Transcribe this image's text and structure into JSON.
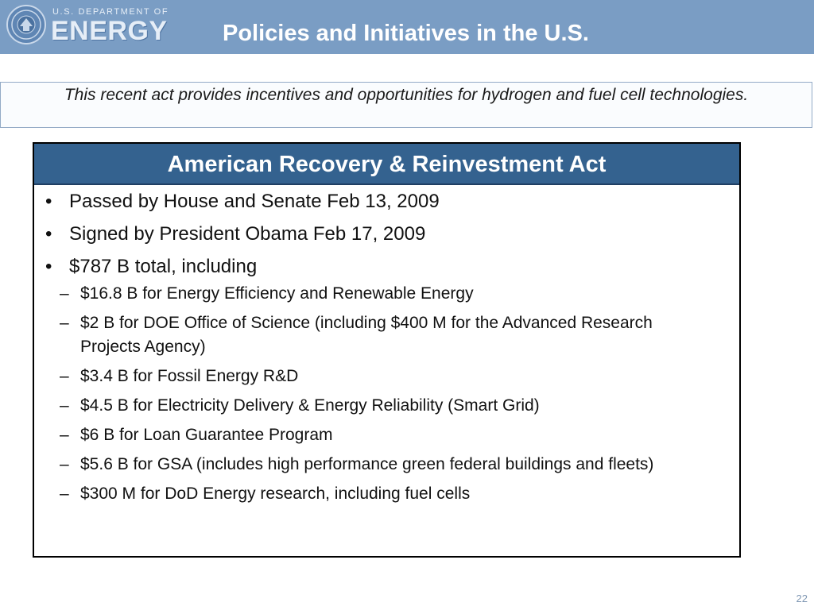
{
  "header": {
    "department": "U.S. DEPARTMENT OF",
    "agency": "ENERGY",
    "title": "Policies and Initiatives in the U.S."
  },
  "subtitle": "This recent act provides incentives and opportunities for hydrogen and fuel cell technologies.",
  "box": {
    "heading": "American Recovery & Reinvestment Act",
    "bullets": [
      {
        "marker": "•",
        "text": "Passed by House and Senate Feb 13, 2009"
      },
      {
        "marker": "•",
        "text": "Signed by President Obama Feb 17, 2009"
      },
      {
        "marker": "•",
        "text": "$787 B total, including"
      }
    ],
    "sub_items": [
      {
        "marker": "–",
        "text": "$16.8 B  for Energy Efficiency and Renewable Energy"
      },
      {
        "marker": "–",
        "text": "$2 B for DOE Office of Science (including $400 M for the Advanced Research Projects Agency)"
      },
      {
        "marker": "–",
        "text": "$3.4 B for Fossil Energy R&D"
      },
      {
        "marker": "–",
        "text": "$4.5 B for Electricity Delivery & Energy Reliability (Smart Grid)"
      },
      {
        "marker": "–",
        "text": "$6 B for Loan Guarantee Program"
      },
      {
        "marker": "–",
        "text": "$5.6 B for GSA (includes high performance green federal buildings and fleets)"
      },
      {
        "marker": "–",
        "text": "$300 M for DoD Energy research, including fuel cells"
      }
    ]
  },
  "page_number": "22",
  "colors": {
    "header_bg": "#7a9dc4",
    "box_heading_bg": "#34628f",
    "page_number": "#7f97b3"
  },
  "icons": {
    "seal": "doe-seal-icon"
  }
}
